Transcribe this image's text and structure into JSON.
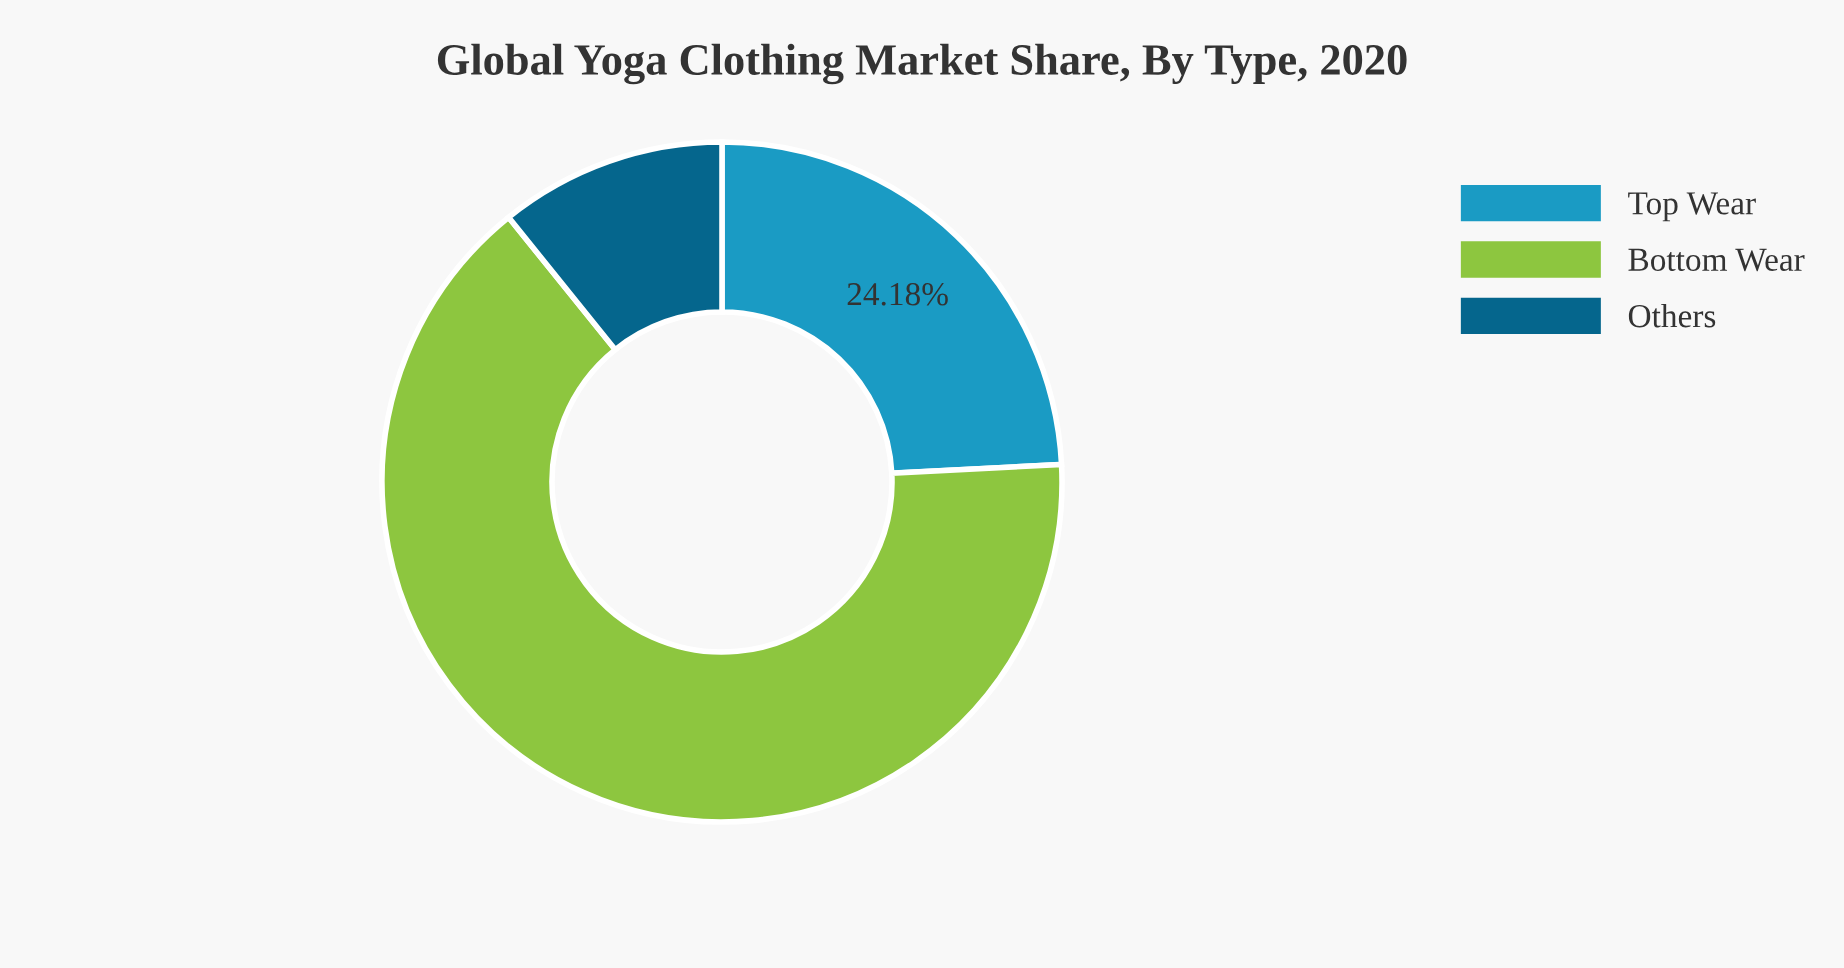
{
  "chart_data": {
    "type": "donut",
    "title": "Global Yoga Clothing Market Share, By Type, 2020",
    "categories": [
      "Top Wear",
      "Bottom Wear",
      "Others"
    ],
    "values": [
      24.18,
      65.02,
      10.8
    ],
    "colors": [
      "#1a9bc4",
      "#8dc63f",
      "#05668d"
    ],
    "value_labels": [
      "24.18%",
      null,
      null
    ],
    "legend": "top right"
  }
}
